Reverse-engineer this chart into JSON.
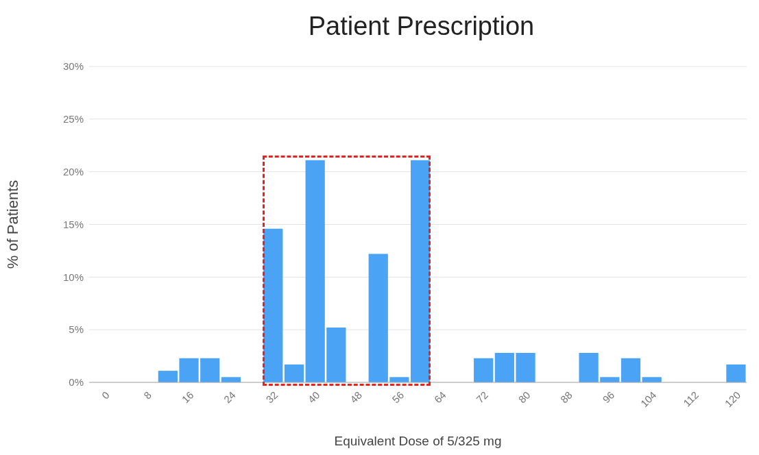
{
  "chart_data": {
    "type": "bar",
    "title": "Patient Prescription",
    "xlabel": "Equivalent Dose of 5/325 mg",
    "ylabel": "% of Patients",
    "x": [
      0,
      4,
      8,
      12,
      16,
      20,
      24,
      28,
      32,
      36,
      40,
      44,
      48,
      52,
      56,
      60,
      64,
      68,
      72,
      76,
      80,
      84,
      88,
      92,
      96,
      100,
      104,
      108,
      112,
      116,
      120
    ],
    "values": [
      0,
      0,
      0,
      1.1,
      2.3,
      2.3,
      0.5,
      0,
      14.6,
      1.7,
      21.1,
      5.2,
      0,
      12.2,
      0.5,
      21.1,
      0,
      0,
      2.3,
      2.8,
      2.8,
      0,
      0,
      2.8,
      0.5,
      2.3,
      0.5,
      0,
      0,
      0,
      1.7
    ],
    "color": "#4aa3f5",
    "xlim": [
      -3,
      122
    ],
    "xticks": [
      0,
      8,
      16,
      24,
      32,
      40,
      48,
      56,
      64,
      72,
      80,
      88,
      96,
      104,
      112,
      120
    ],
    "ylim": [
      0,
      30
    ],
    "yticks": [
      {
        "value": 0,
        "label": "0%"
      },
      {
        "value": 5,
        "label": "5%"
      },
      {
        "value": 10,
        "label": "10%"
      },
      {
        "value": 15,
        "label": "15%"
      },
      {
        "value": 20,
        "label": "20%"
      },
      {
        "value": 25,
        "label": "25%"
      },
      {
        "value": 30,
        "label": "30%"
      }
    ],
    "grid": "y"
  }
}
